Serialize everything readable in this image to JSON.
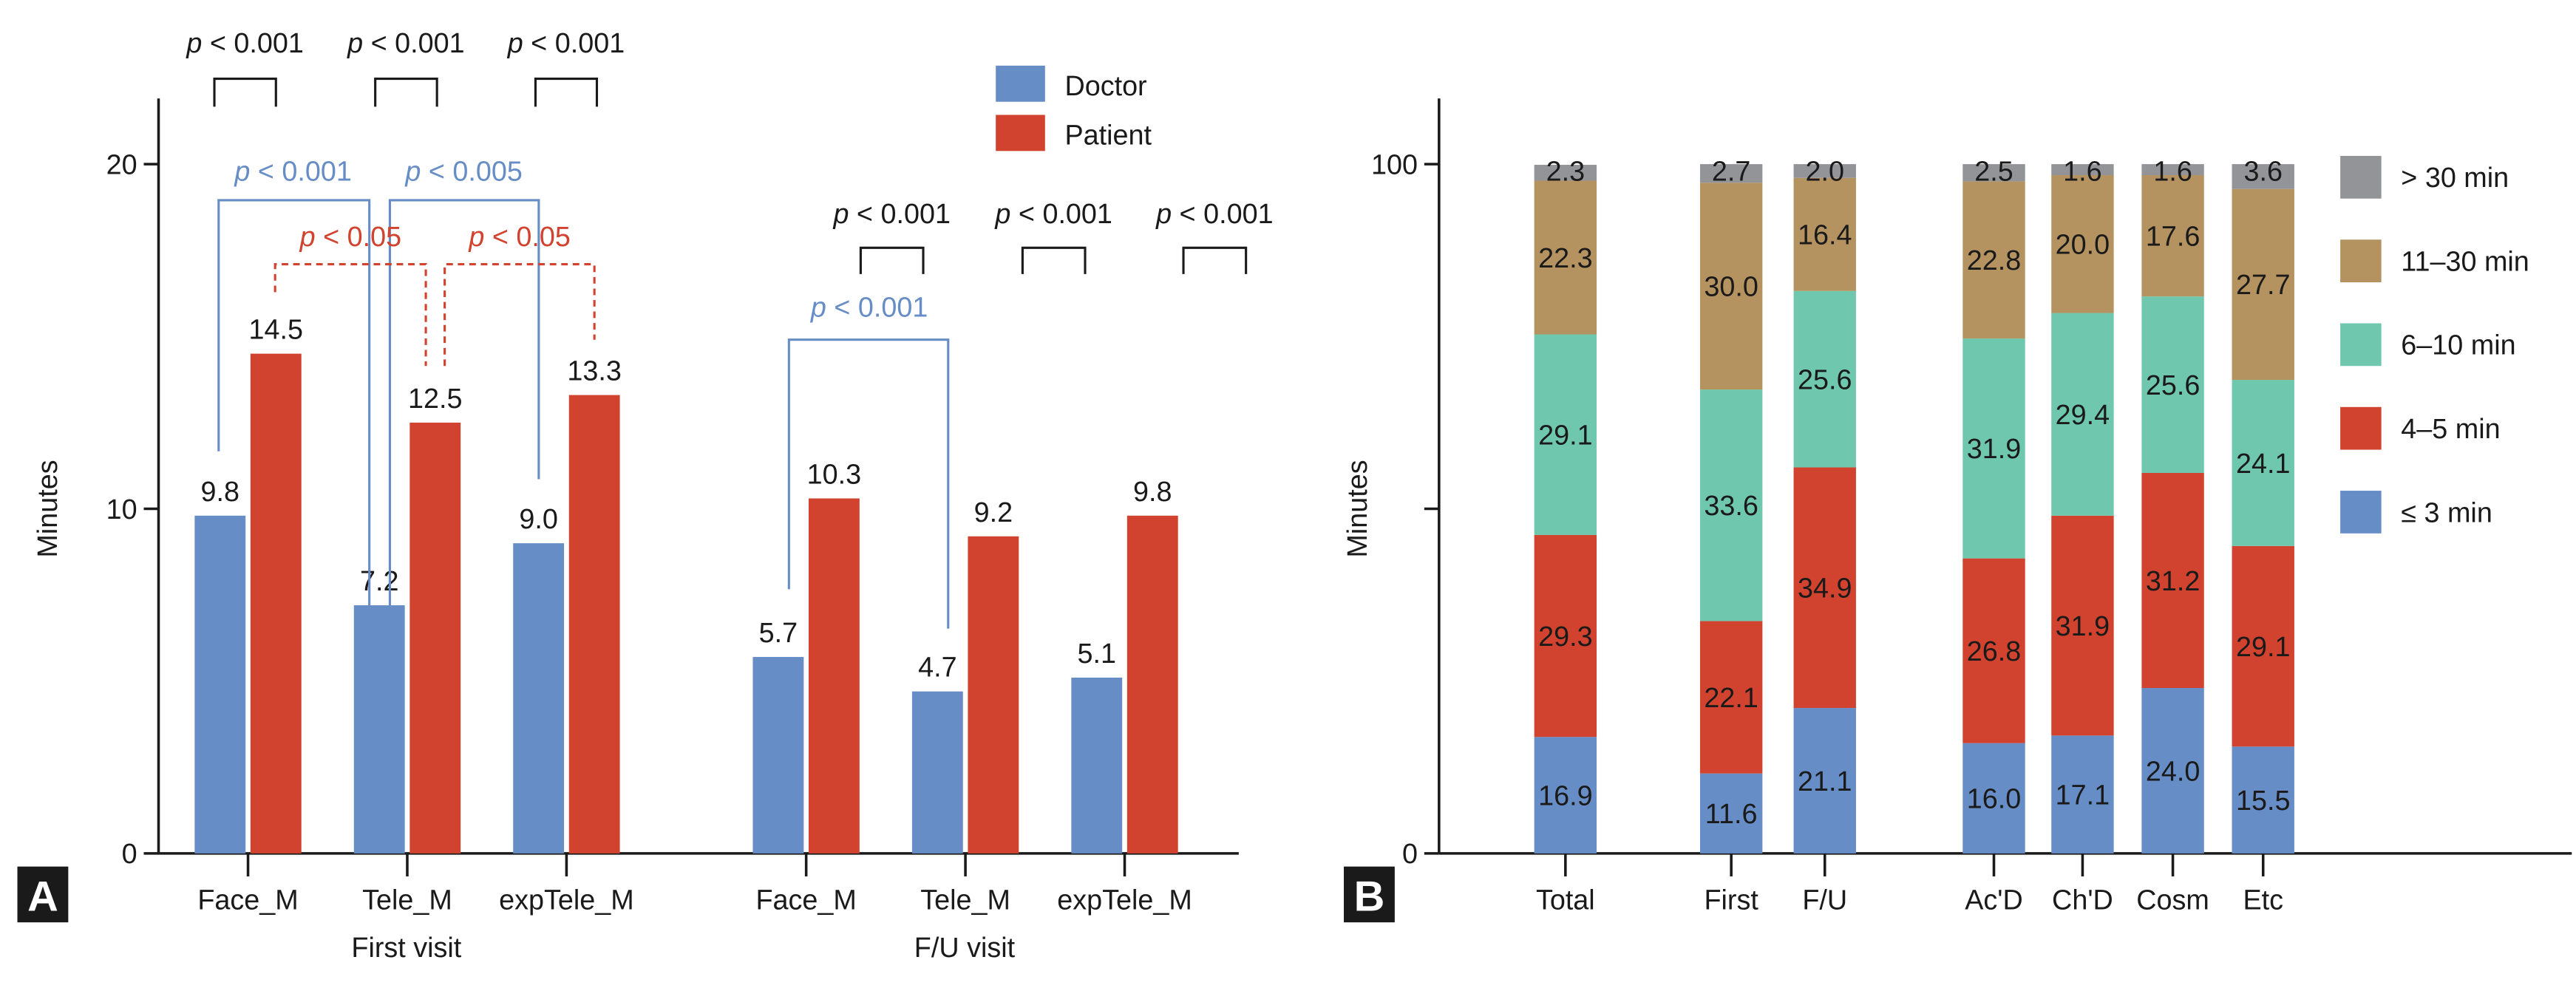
{
  "colors": {
    "doctor": "#678dc6",
    "patient": "#d2432f",
    "gt30": "#939498",
    "m11_30": "#b59360",
    "m6_10": "#6fc8ad",
    "m4_5": "#d2432f",
    "le3": "#678dc6",
    "sig_black": "#1a1a1a",
    "sig_blue": "#678dc6",
    "sig_red": "#d2432f"
  },
  "chart_data": [
    {
      "type": "bar",
      "panel_label": "A",
      "ylabel": "Minutes",
      "ylim": [
        0,
        22
      ],
      "yticks": [
        "0",
        "10",
        "20"
      ],
      "categories": [
        "Face_M",
        "Tele_M",
        "expTele_M",
        "Face_M",
        "Tele_M",
        "expTele_M"
      ],
      "groups": [
        "First visit",
        "F/U visit"
      ],
      "series": [
        {
          "name": "Doctor",
          "values": [
            9.8,
            7.2,
            9.0,
            5.7,
            4.7,
            5.1
          ],
          "labels": [
            "9.8",
            "7.2",
            "9.0",
            "5.7",
            "4.7",
            "5.1"
          ]
        },
        {
          "name": "Patient",
          "values": [
            14.5,
            12.5,
            13.3,
            10.3,
            9.2,
            9.8
          ],
          "labels": [
            "14.5",
            "12.5",
            "13.3",
            "10.3",
            "9.2",
            "9.8"
          ]
        }
      ],
      "legend_position": "top-right",
      "annotations": {
        "doctor_vs_patient": [
          "p < 0.001",
          "p < 0.001",
          "p < 0.001",
          "p < 0.001",
          "p < 0.001",
          "p < 0.001"
        ],
        "doctor_first_face_vs_tele": "p < 0.001",
        "doctor_first_tele_vs_exptele": "p < 0.005",
        "patient_first_face_vs_tele": "p < 0.05",
        "patient_first_tele_vs_exptele": "p < 0.05",
        "doctor_fu_face_vs_tele": "p < 0.001"
      }
    },
    {
      "type": "bar",
      "stacked": true,
      "panel_label": "B",
      "ylabel": "Minutes",
      "ylim": [
        0,
        110
      ],
      "yticks": [
        "0",
        "",
        "100"
      ],
      "categories": [
        "Total",
        "First",
        "F/U",
        "Ac'D",
        "Ch'D",
        "Cosm",
        "Etc"
      ],
      "series": [
        {
          "name": "≤ 3 min",
          "values": [
            16.9,
            11.6,
            21.1,
            16.0,
            17.1,
            24.0,
            15.5
          ],
          "labels": [
            "16.9",
            "11.6",
            "21.1",
            "16.0",
            "17.1",
            "24.0",
            "15.5"
          ]
        },
        {
          "name": "4–5 min",
          "values": [
            29.3,
            22.1,
            34.9,
            26.8,
            31.9,
            31.2,
            29.1
          ],
          "labels": [
            "29.3",
            "22.1",
            "34.9",
            "26.8",
            "31.9",
            "31.2",
            "29.1"
          ]
        },
        {
          "name": "6–10 min",
          "values": [
            29.1,
            33.6,
            25.6,
            31.9,
            29.4,
            25.6,
            24.1
          ],
          "labels": [
            "29.1",
            "33.6",
            "25.6",
            "31.9",
            "29.4",
            "25.6",
            "24.1"
          ]
        },
        {
          "name": "11–30 min",
          "values": [
            22.3,
            30.0,
            16.4,
            22.8,
            20.0,
            17.6,
            27.7
          ],
          "labels": [
            "22.3",
            "30.0",
            "16.4",
            "22.8",
            "20.0",
            "17.6",
            "27.7"
          ]
        },
        {
          "name": "> 30 min",
          "values": [
            2.3,
            2.7,
            2.0,
            2.5,
            1.6,
            1.6,
            3.6
          ],
          "labels": [
            "2.3",
            "2.7",
            "2.0",
            "2.5",
            "1.6",
            "1.6",
            "3.6"
          ]
        }
      ],
      "legend_position": "right"
    }
  ]
}
